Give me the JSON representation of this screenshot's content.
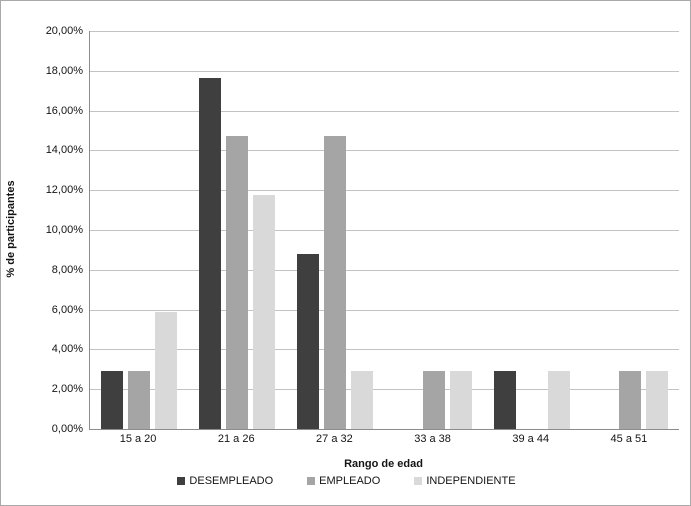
{
  "chart_data": {
    "type": "bar",
    "title": "",
    "xlabel": "Rango de edad",
    "ylabel": "% de participantes",
    "categories": [
      "15 a 20",
      "21 a 26",
      "27 a 32",
      "33 a 38",
      "39 a 44",
      "45 a 51"
    ],
    "series": [
      {
        "name": "DESEMPLEADO",
        "color": "#3f3f3f",
        "values": [
          2.94,
          17.65,
          8.82,
          0,
          2.94,
          0
        ]
      },
      {
        "name": "EMPLEADO",
        "color": "#a5a5a5",
        "values": [
          2.94,
          14.71,
          14.71,
          2.94,
          0,
          2.94
        ]
      },
      {
        "name": "INDEPENDIENTE",
        "color": "#d9d9d9",
        "values": [
          5.88,
          11.76,
          2.94,
          2.94,
          2.94,
          2.94
        ]
      }
    ],
    "y_axis": {
      "min": 0,
      "max": 20,
      "step": 2,
      "tick_labels_top_down": [
        "20,00%",
        "18,00%",
        "16,00%",
        "14,00%",
        "12,00%",
        "10,00%",
        "8,00%",
        "6,00%",
        "4,00%",
        "2,00%",
        "0,00%"
      ]
    },
    "grid": true,
    "legend_position": "bottom"
  },
  "theme": {
    "gridline_color": "#c3c3c3",
    "axis_color": "#8c8c8c",
    "chart_border_color": "#a9a9a9",
    "text_color": "#141414",
    "background": "#ffffff"
  }
}
